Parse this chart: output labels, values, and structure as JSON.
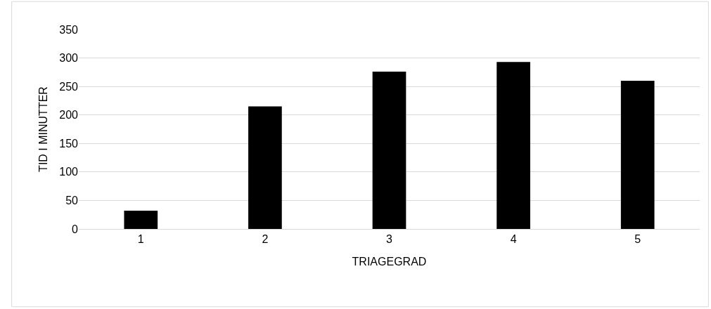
{
  "chart_data": {
    "type": "bar",
    "xlabel": "TRIAGEGRAD",
    "ylabel": "TID I MINUTTER",
    "categories": [
      "1",
      "2",
      "3",
      "4",
      "5"
    ],
    "values": [
      32,
      215,
      276,
      293,
      260
    ],
    "color": "#000000",
    "ylim": [
      0,
      350
    ],
    "yticks": [
      0,
      50,
      100,
      150,
      200,
      250,
      300,
      350
    ],
    "grid": "y"
  }
}
